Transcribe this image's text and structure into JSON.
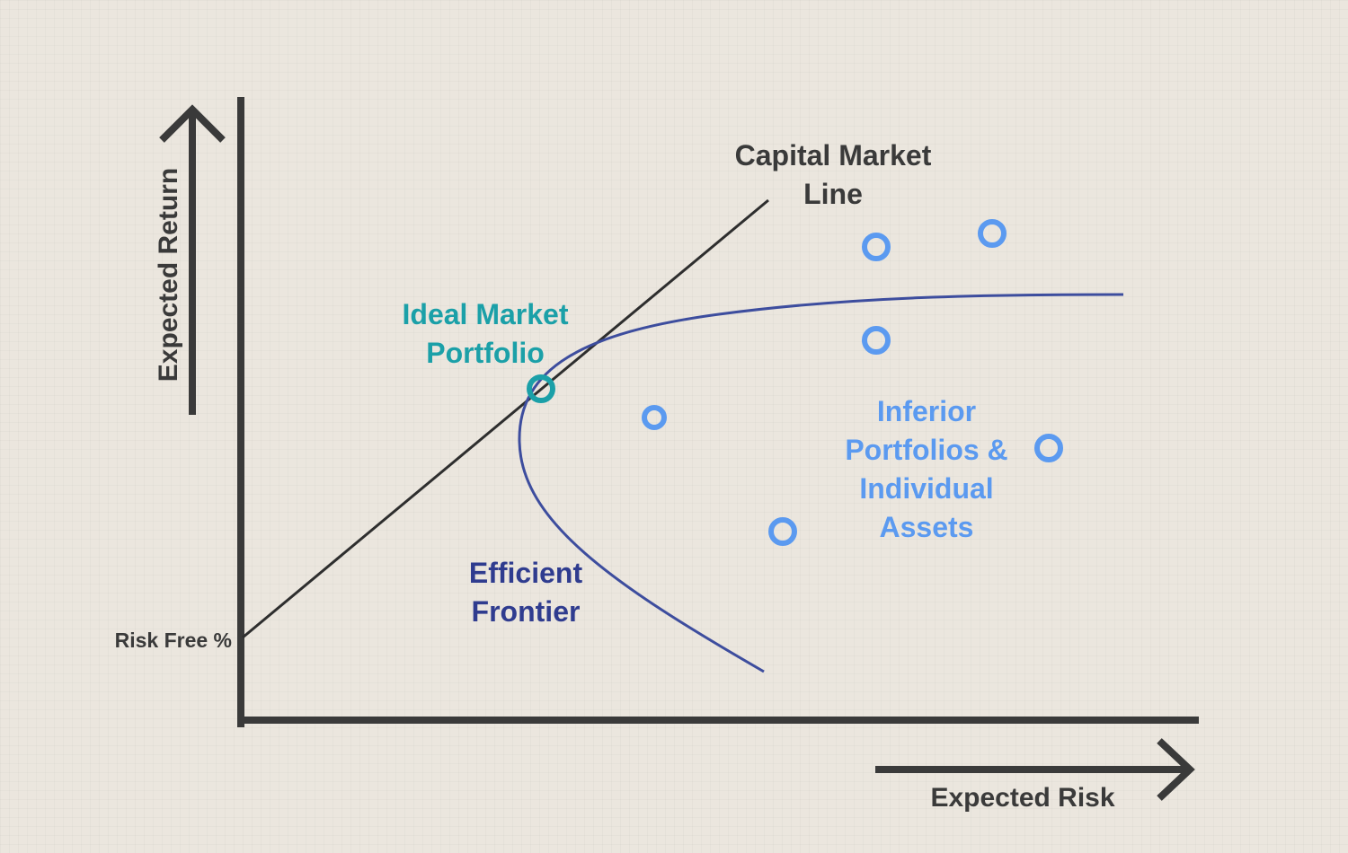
{
  "axes": {
    "y_label": "Expected Return",
    "x_label": "Expected Risk",
    "risk_free_label": "Risk Free %"
  },
  "labels": {
    "cml_line1": "Capital Market",
    "cml_line2": "Line",
    "ideal_line1": "Ideal Market",
    "ideal_line2": "Portfolio",
    "frontier_line1": "Efficient",
    "frontier_line2": "Frontier",
    "inferior_line1": "Inferior",
    "inferior_line2": "Portfolios &",
    "inferior_line3": "Individual",
    "inferior_line4": "Assets"
  },
  "colors": {
    "background": "#ebe6de",
    "axis": "#3a3a3a",
    "capital_market_line": "#2e2e2e",
    "efficient_frontier": "#3d4d9e",
    "ideal_portfolio": "#1ba0a8",
    "inferior_points": "#5b9af0",
    "frontier_label": "#2f3c8f"
  }
}
